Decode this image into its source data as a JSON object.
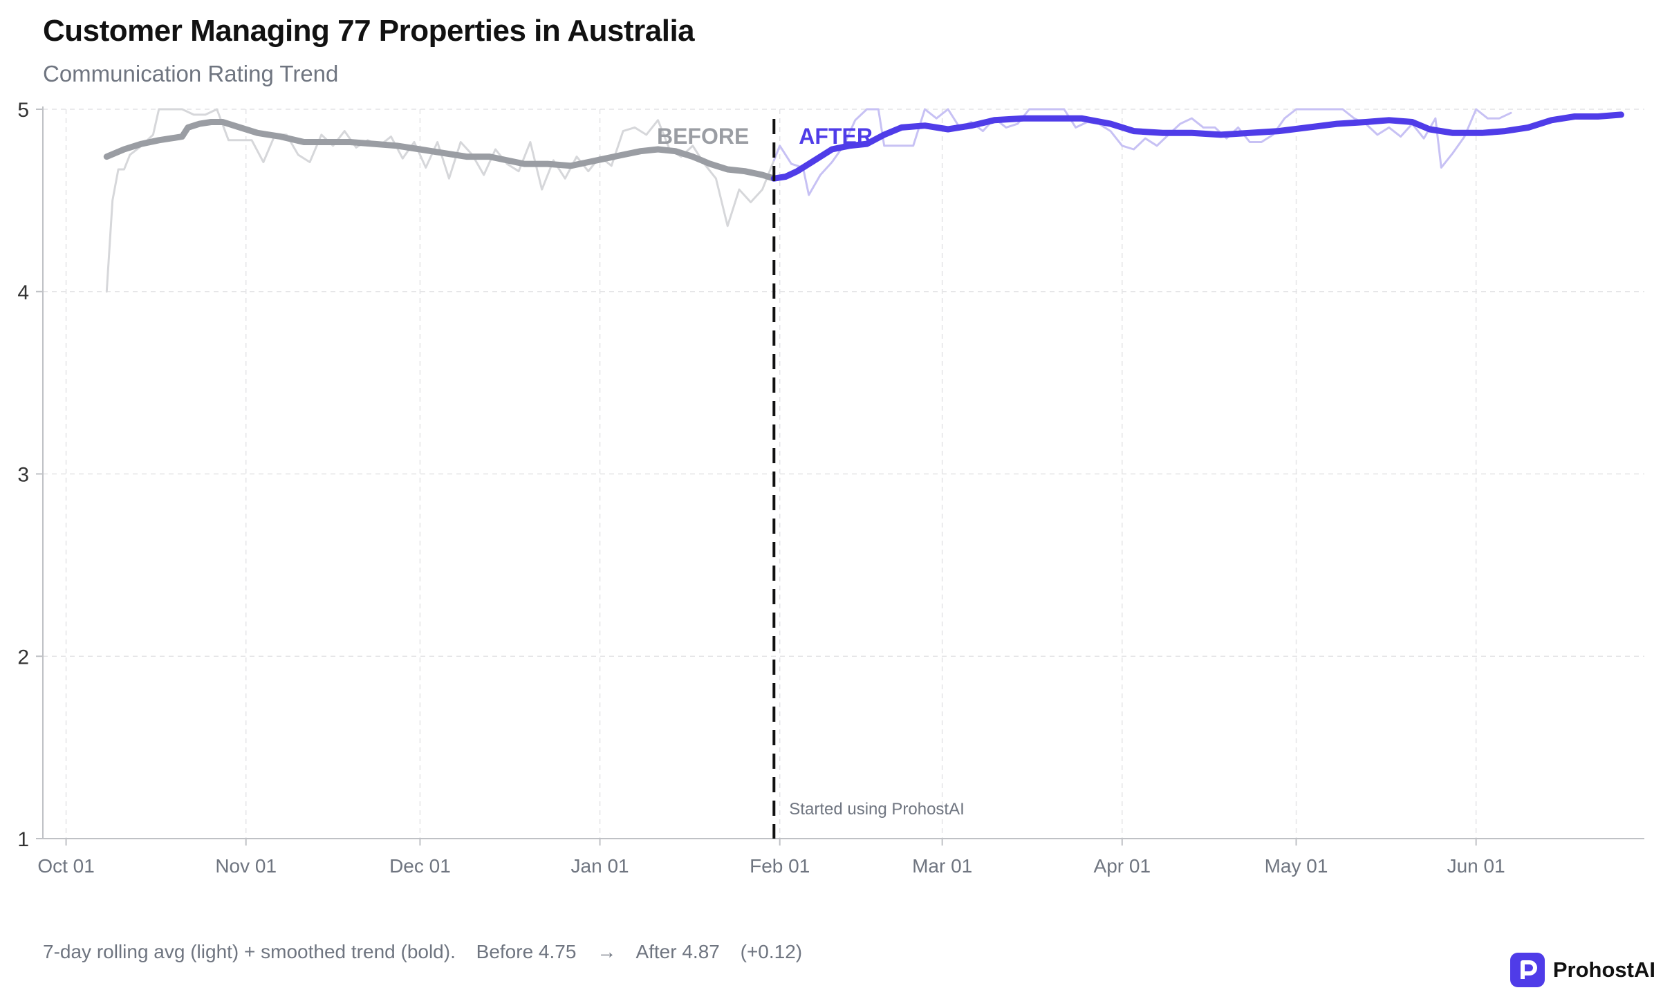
{
  "title": "Customer Managing 77 Properties in Australia",
  "subtitle": "Communication Rating Trend",
  "footer": {
    "legend_text": "7-day rolling avg (light) + smoothed trend (bold).",
    "before_text": "Before 4.75",
    "arrow": "→",
    "after_text": "After 4.87",
    "delta_text": "(+0.12)"
  },
  "brand": {
    "name": "ProhostAI",
    "icon": "prohostai-logo-icon",
    "color": "#4f3ce8"
  },
  "chart_data": {
    "type": "line",
    "title": "Customer Managing 77 Properties in Australia",
    "subtitle": "Communication Rating Trend",
    "xlabel": "",
    "ylabel": "",
    "xlim": [
      "2024-09-27",
      "2025-06-30"
    ],
    "ylim": [
      1,
      5
    ],
    "y_ticks": [
      1,
      2,
      3,
      4,
      5
    ],
    "x_ticks": [
      {
        "date": "2024-10-01",
        "label": "Oct 01"
      },
      {
        "date": "2024-11-01",
        "label": "Nov 01"
      },
      {
        "date": "2024-12-01",
        "label": "Dec 01"
      },
      {
        "date": "2025-01-01",
        "label": "Jan 01"
      },
      {
        "date": "2025-02-01",
        "label": "Feb 01"
      },
      {
        "date": "2025-03-01",
        "label": "Mar 01"
      },
      {
        "date": "2025-04-01",
        "label": "Apr 01"
      },
      {
        "date": "2025-05-01",
        "label": "May 01"
      },
      {
        "date": "2025-06-01",
        "label": "Jun 01"
      }
    ],
    "grid": true,
    "cutover": {
      "date": "2025-01-31",
      "label": "Started using ProhostAI",
      "before_label": "BEFORE",
      "after_label": "AFTER"
    },
    "colors": {
      "before": "#9a9da3",
      "before_light": "#d6d7da",
      "after": "#4f3ce8",
      "after_light": "#c7c1f4",
      "cutover_line": "#111111"
    },
    "rolling_before": [
      [
        "2024-10-08",
        4.0
      ],
      [
        "2024-10-09",
        4.5
      ],
      [
        "2024-10-10",
        4.67
      ],
      [
        "2024-10-11",
        4.67
      ],
      [
        "2024-10-12",
        4.75
      ],
      [
        "2024-10-14",
        4.8
      ],
      [
        "2024-10-15",
        4.83
      ],
      [
        "2024-10-16",
        4.86
      ],
      [
        "2024-10-17",
        5.0
      ],
      [
        "2024-10-19",
        5.0
      ],
      [
        "2024-10-21",
        5.0
      ],
      [
        "2024-10-23",
        4.97
      ],
      [
        "2024-10-25",
        4.97
      ],
      [
        "2024-10-27",
        5.0
      ],
      [
        "2024-10-29",
        4.83
      ],
      [
        "2024-10-31",
        4.83
      ],
      [
        "2024-11-02",
        4.83
      ],
      [
        "2024-11-04",
        4.71
      ],
      [
        "2024-11-06",
        4.86
      ],
      [
        "2024-11-08",
        4.86
      ],
      [
        "2024-11-10",
        4.75
      ],
      [
        "2024-11-12",
        4.71
      ],
      [
        "2024-11-14",
        4.86
      ],
      [
        "2024-11-16",
        4.8
      ],
      [
        "2024-11-18",
        4.88
      ],
      [
        "2024-11-20",
        4.79
      ],
      [
        "2024-11-22",
        4.83
      ],
      [
        "2024-11-24",
        4.8
      ],
      [
        "2024-11-26",
        4.85
      ],
      [
        "2024-11-28",
        4.73
      ],
      [
        "2024-11-30",
        4.82
      ],
      [
        "2024-12-02",
        4.68
      ],
      [
        "2024-12-04",
        4.82
      ],
      [
        "2024-12-06",
        4.62
      ],
      [
        "2024-12-08",
        4.82
      ],
      [
        "2024-12-10",
        4.75
      ],
      [
        "2024-12-12",
        4.64
      ],
      [
        "2024-12-14",
        4.78
      ],
      [
        "2024-12-16",
        4.7
      ],
      [
        "2024-12-18",
        4.66
      ],
      [
        "2024-12-20",
        4.82
      ],
      [
        "2024-12-22",
        4.56
      ],
      [
        "2024-12-24",
        4.72
      ],
      [
        "2024-12-26",
        4.62
      ],
      [
        "2024-12-28",
        4.74
      ],
      [
        "2024-12-30",
        4.66
      ],
      [
        "2025-01-01",
        4.74
      ],
      [
        "2025-01-03",
        4.69
      ],
      [
        "2025-01-05",
        4.88
      ],
      [
        "2025-01-07",
        4.9
      ],
      [
        "2025-01-09",
        4.86
      ],
      [
        "2025-01-11",
        4.94
      ],
      [
        "2025-01-13",
        4.78
      ],
      [
        "2025-01-15",
        4.74
      ],
      [
        "2025-01-17",
        4.8
      ],
      [
        "2025-01-19",
        4.7
      ],
      [
        "2025-01-21",
        4.62
      ],
      [
        "2025-01-23",
        4.36
      ],
      [
        "2025-01-25",
        4.56
      ],
      [
        "2025-01-27",
        4.49
      ],
      [
        "2025-01-29",
        4.56
      ],
      [
        "2025-01-31",
        4.72
      ]
    ],
    "rolling_after": [
      [
        "2025-01-31",
        4.72
      ],
      [
        "2025-02-01",
        4.8
      ],
      [
        "2025-02-03",
        4.7
      ],
      [
        "2025-02-05",
        4.68
      ],
      [
        "2025-02-06",
        4.53
      ],
      [
        "2025-02-08",
        4.64
      ],
      [
        "2025-02-10",
        4.71
      ],
      [
        "2025-02-12",
        4.8
      ],
      [
        "2025-02-14",
        4.94
      ],
      [
        "2025-02-16",
        5.0
      ],
      [
        "2025-02-18",
        5.0
      ],
      [
        "2025-02-19",
        4.8
      ],
      [
        "2025-02-21",
        4.8
      ],
      [
        "2025-02-24",
        4.8
      ],
      [
        "2025-02-26",
        5.0
      ],
      [
        "2025-02-28",
        4.95
      ],
      [
        "2025-03-02",
        5.0
      ],
      [
        "2025-03-04",
        4.9
      ],
      [
        "2025-03-06",
        4.93
      ],
      [
        "2025-03-08",
        4.88
      ],
      [
        "2025-03-10",
        4.95
      ],
      [
        "2025-03-12",
        4.9
      ],
      [
        "2025-03-14",
        4.92
      ],
      [
        "2025-03-16",
        5.0
      ],
      [
        "2025-03-18",
        5.0
      ],
      [
        "2025-03-22",
        5.0
      ],
      [
        "2025-03-24",
        4.9
      ],
      [
        "2025-03-26",
        4.93
      ],
      [
        "2025-03-28",
        4.92
      ],
      [
        "2025-03-30",
        4.88
      ],
      [
        "2025-04-01",
        4.8
      ],
      [
        "2025-04-03",
        4.78
      ],
      [
        "2025-04-05",
        4.84
      ],
      [
        "2025-04-07",
        4.8
      ],
      [
        "2025-04-09",
        4.86
      ],
      [
        "2025-04-11",
        4.92
      ],
      [
        "2025-04-13",
        4.95
      ],
      [
        "2025-04-15",
        4.9
      ],
      [
        "2025-04-17",
        4.9
      ],
      [
        "2025-04-19",
        4.84
      ],
      [
        "2025-04-21",
        4.9
      ],
      [
        "2025-04-23",
        4.82
      ],
      [
        "2025-04-25",
        4.82
      ],
      [
        "2025-04-27",
        4.86
      ],
      [
        "2025-04-29",
        4.95
      ],
      [
        "2025-05-01",
        5.0
      ],
      [
        "2025-05-05",
        5.0
      ],
      [
        "2025-05-09",
        5.0
      ],
      [
        "2025-05-11",
        4.95
      ],
      [
        "2025-05-13",
        4.92
      ],
      [
        "2025-05-15",
        4.86
      ],
      [
        "2025-05-17",
        4.9
      ],
      [
        "2025-05-19",
        4.85
      ],
      [
        "2025-05-21",
        4.92
      ],
      [
        "2025-05-23",
        4.84
      ],
      [
        "2025-05-25",
        4.95
      ],
      [
        "2025-05-26",
        4.68
      ],
      [
        "2025-05-28",
        4.76
      ],
      [
        "2025-05-30",
        4.85
      ],
      [
        "2025-06-01",
        5.0
      ],
      [
        "2025-06-03",
        4.95
      ],
      [
        "2025-06-05",
        4.95
      ],
      [
        "2025-06-07",
        4.98
      ]
    ],
    "trend_before": [
      [
        "2024-10-08",
        4.74
      ],
      [
        "2024-10-11",
        4.78
      ],
      [
        "2024-10-14",
        4.81
      ],
      [
        "2024-10-17",
        4.83
      ],
      [
        "2024-10-19",
        4.84
      ],
      [
        "2024-10-21",
        4.85
      ],
      [
        "2024-10-22",
        4.9
      ],
      [
        "2024-10-24",
        4.92
      ],
      [
        "2024-10-26",
        4.93
      ],
      [
        "2024-10-28",
        4.93
      ],
      [
        "2024-10-31",
        4.9
      ],
      [
        "2024-11-03",
        4.87
      ],
      [
        "2024-11-07",
        4.85
      ],
      [
        "2024-11-11",
        4.82
      ],
      [
        "2024-11-15",
        4.82
      ],
      [
        "2024-11-19",
        4.82
      ],
      [
        "2024-11-23",
        4.81
      ],
      [
        "2024-11-27",
        4.8
      ],
      [
        "2024-12-01",
        4.78
      ],
      [
        "2024-12-05",
        4.76
      ],
      [
        "2024-12-09",
        4.74
      ],
      [
        "2024-12-13",
        4.74
      ],
      [
        "2024-12-16",
        4.72
      ],
      [
        "2024-12-19",
        4.7
      ],
      [
        "2024-12-23",
        4.7
      ],
      [
        "2024-12-27",
        4.69
      ],
      [
        "2024-12-30",
        4.71
      ],
      [
        "2025-01-02",
        4.73
      ],
      [
        "2025-01-05",
        4.75
      ],
      [
        "2025-01-08",
        4.77
      ],
      [
        "2025-01-11",
        4.78
      ],
      [
        "2025-01-14",
        4.77
      ],
      [
        "2025-01-17",
        4.74
      ],
      [
        "2025-01-20",
        4.7
      ],
      [
        "2025-01-23",
        4.67
      ],
      [
        "2025-01-26",
        4.66
      ],
      [
        "2025-01-29",
        4.64
      ],
      [
        "2025-01-31",
        4.62
      ]
    ],
    "trend_after": [
      [
        "2025-01-31",
        4.62
      ],
      [
        "2025-02-02",
        4.63
      ],
      [
        "2025-02-04",
        4.66
      ],
      [
        "2025-02-07",
        4.72
      ],
      [
        "2025-02-10",
        4.78
      ],
      [
        "2025-02-13",
        4.8
      ],
      [
        "2025-02-16",
        4.81
      ],
      [
        "2025-02-19",
        4.86
      ],
      [
        "2025-02-22",
        4.9
      ],
      [
        "2025-02-26",
        4.91
      ],
      [
        "2025-03-02",
        4.89
      ],
      [
        "2025-03-06",
        4.91
      ],
      [
        "2025-03-10",
        4.94
      ],
      [
        "2025-03-15",
        4.95
      ],
      [
        "2025-03-20",
        4.95
      ],
      [
        "2025-03-25",
        4.95
      ],
      [
        "2025-03-30",
        4.92
      ],
      [
        "2025-04-03",
        4.88
      ],
      [
        "2025-04-08",
        4.87
      ],
      [
        "2025-04-13",
        4.87
      ],
      [
        "2025-04-18",
        4.86
      ],
      [
        "2025-04-23",
        4.87
      ],
      [
        "2025-04-28",
        4.88
      ],
      [
        "2025-05-03",
        4.9
      ],
      [
        "2025-05-08",
        4.92
      ],
      [
        "2025-05-13",
        4.93
      ],
      [
        "2025-05-17",
        4.94
      ],
      [
        "2025-05-21",
        4.93
      ],
      [
        "2025-05-24",
        4.89
      ],
      [
        "2025-05-28",
        4.87
      ],
      [
        "2025-06-02",
        4.87
      ],
      [
        "2025-06-06",
        4.88
      ],
      [
        "2025-06-10",
        4.9
      ],
      [
        "2025-06-14",
        4.94
      ],
      [
        "2025-06-18",
        4.96
      ],
      [
        "2025-06-22",
        4.96
      ],
      [
        "2025-06-26",
        4.97
      ]
    ]
  }
}
